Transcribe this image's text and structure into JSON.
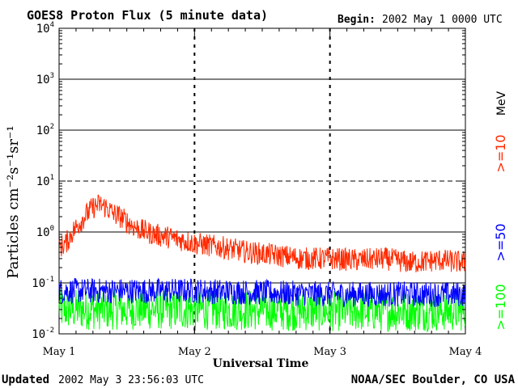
{
  "chart_data": {
    "type": "line",
    "title": "GOES8 Proton Flux (5 minute data)",
    "begin_label": "Begin:",
    "begin_value": "2002 May 1 0000 UTC",
    "xlabel": "Universal Time",
    "ylabel": "Particles cm⁻²s⁻¹sr⁻¹",
    "x_ticks": [
      "May 1",
      "May 2",
      "May 3",
      "May 4"
    ],
    "xlim_days": [
      0,
      3
    ],
    "ylim": [
      0.01,
      10000
    ],
    "yscale": "log",
    "y_ticks": [
      {
        "base": "10",
        "exp": "-2"
      },
      {
        "base": "10",
        "exp": "-1"
      },
      {
        "base": "10",
        "exp": "0"
      },
      {
        "base": "10",
        "exp": "1"
      },
      {
        "base": "10",
        "exp": "2"
      },
      {
        "base": "10",
        "exp": "3"
      },
      {
        "base": "10",
        "exp": "4"
      }
    ],
    "legend_unit": "MeV",
    "series": [
      {
        "name": ">=10",
        "color": "#ff2a00",
        "points": [
          [
            0.0,
            0.5
          ],
          [
            0.05,
            0.6
          ],
          [
            0.1,
            1.0
          ],
          [
            0.15,
            1.5
          ],
          [
            0.2,
            2.2
          ],
          [
            0.25,
            3.0
          ],
          [
            0.3,
            3.5
          ],
          [
            0.35,
            3.0
          ],
          [
            0.4,
            2.3
          ],
          [
            0.45,
            2.0
          ],
          [
            0.5,
            1.6
          ],
          [
            0.55,
            1.3
          ],
          [
            0.6,
            1.1
          ],
          [
            0.7,
            0.9
          ],
          [
            0.8,
            0.8
          ],
          [
            0.9,
            0.7
          ],
          [
            1.0,
            0.6
          ],
          [
            1.2,
            0.5
          ],
          [
            1.4,
            0.4
          ],
          [
            1.6,
            0.35
          ],
          [
            1.8,
            0.3
          ],
          [
            2.0,
            0.3
          ],
          [
            2.2,
            0.28
          ],
          [
            2.4,
            0.3
          ],
          [
            2.6,
            0.25
          ],
          [
            2.8,
            0.28
          ],
          [
            3.0,
            0.25
          ]
        ],
        "noise": 0.45
      },
      {
        "name": ">=50",
        "color": "#0000ff",
        "points": [
          [
            0.0,
            0.07
          ],
          [
            1.0,
            0.07
          ],
          [
            2.0,
            0.06
          ],
          [
            3.0,
            0.06
          ]
        ],
        "noise": 0.5
      },
      {
        "name": ">=100",
        "color": "#00ff00",
        "points": [
          [
            0.0,
            0.03
          ],
          [
            1.0,
            0.03
          ],
          [
            2.0,
            0.028
          ],
          [
            3.0,
            0.028
          ]
        ],
        "noise": 0.8
      }
    ]
  },
  "footer": {
    "updated_label": "Updated",
    "updated_value": "2002 May  3 23:56:03 UTC",
    "source": "NOAA/SEC Boulder, CO USA"
  }
}
